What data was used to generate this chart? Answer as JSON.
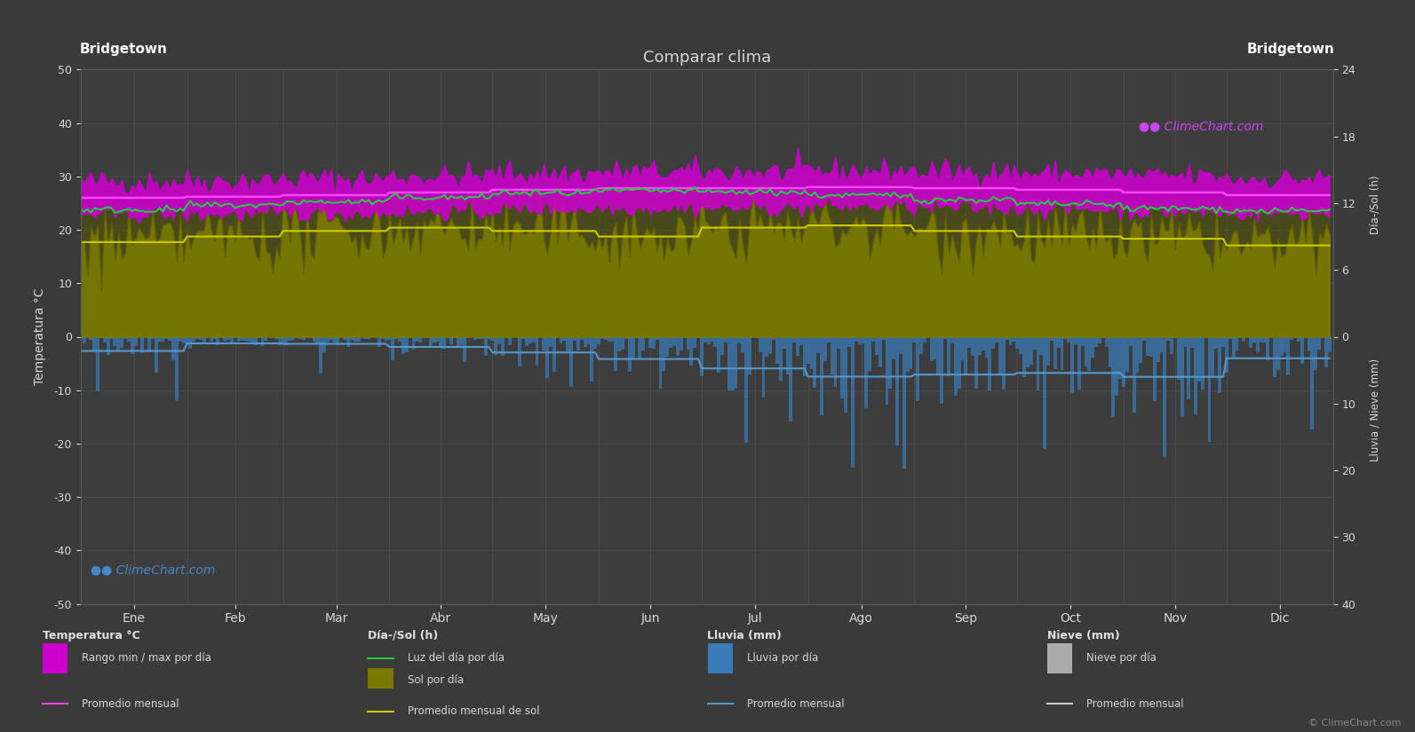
{
  "title": "Comparar clima",
  "location_left": "Bridgetown",
  "location_right": "Bridgetown",
  "bg_color": "#3a3a3a",
  "plot_bg_color": "#3d3d3d",
  "text_color": "#d8d8d8",
  "grid_color": "#5a5a5a",
  "months": [
    "Ene",
    "Feb",
    "Mar",
    "Abr",
    "May",
    "Jun",
    "Jul",
    "Ago",
    "Sep",
    "Oct",
    "Nov",
    "Dic"
  ],
  "days_in_month": [
    31,
    28,
    31,
    30,
    31,
    30,
    31,
    31,
    30,
    31,
    30,
    31
  ],
  "temp_ylim": [
    -50,
    50
  ],
  "temp_avg_monthly": [
    26.0,
    26.2,
    26.5,
    27.0,
    27.5,
    27.8,
    27.8,
    28.0,
    27.8,
    27.5,
    27.0,
    26.5
  ],
  "temp_max_monthly": [
    29.0,
    29.2,
    29.5,
    30.0,
    30.5,
    30.8,
    30.8,
    31.0,
    30.8,
    30.5,
    30.0,
    29.5
  ],
  "temp_min_monthly": [
    23.0,
    23.0,
    23.2,
    23.5,
    24.0,
    24.2,
    24.2,
    24.5,
    24.2,
    24.0,
    23.5,
    23.2
  ],
  "daylight_monthly": [
    11.4,
    11.8,
    12.1,
    12.5,
    12.9,
    13.1,
    13.0,
    12.7,
    12.3,
    11.9,
    11.5,
    11.3
  ],
  "sunshine_monthly": [
    8.5,
    9.0,
    9.5,
    9.8,
    9.5,
    9.0,
    9.8,
    10.0,
    9.5,
    9.0,
    8.8,
    8.2
  ],
  "rain_mm_monthly": [
    66,
    28,
    33,
    46,
    73,
    100,
    147,
    185,
    170,
    168,
    180,
    100
  ],
  "rain_color": "#3a7ab5",
  "rain_line_color": "#5599cc",
  "magenta_fill_color": "#cc00cc",
  "magenta_line_color": "#ff44ff",
  "green_line_color": "#22cc44",
  "sunshine_fill_color": "#7a7a00",
  "sunshine_line_color": "#cccc00",
  "nieve_color": "#aaaaaa",
  "nieve_line_color": "#cccccc",
  "legend_bg_color": "#2d2d2d",
  "watermark_color_purple": "#bb44dd",
  "watermark_color_blue": "#4488cc"
}
